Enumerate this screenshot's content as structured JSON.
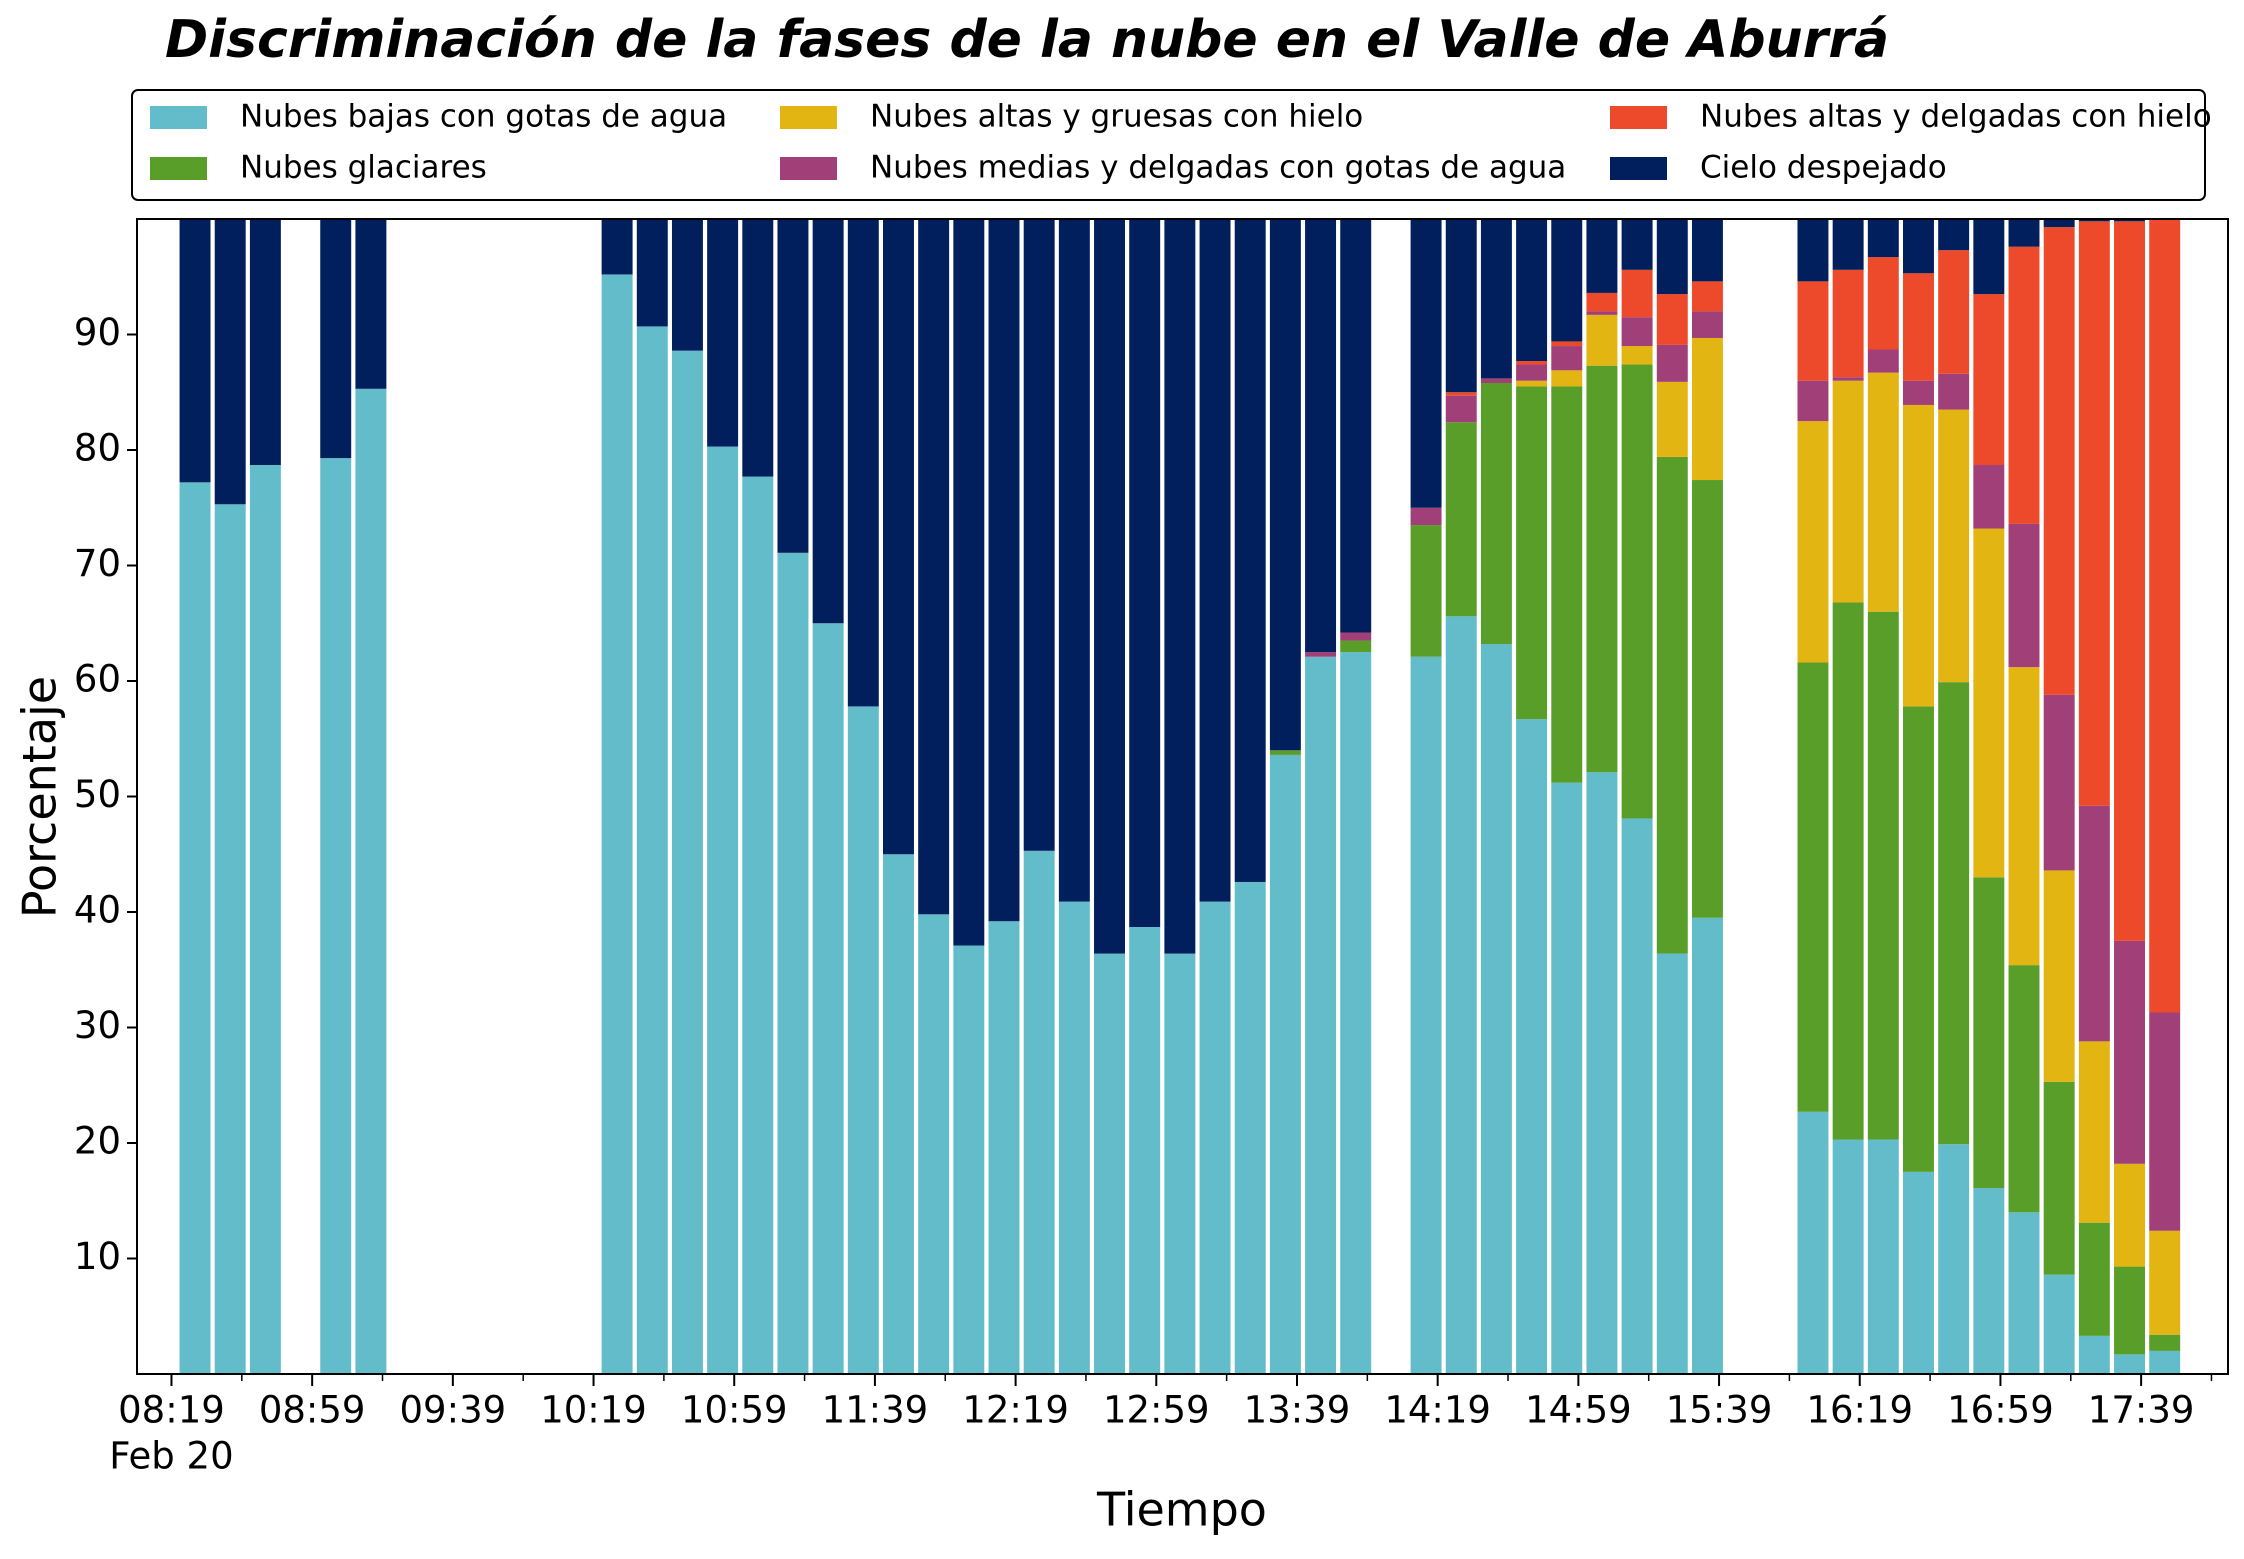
{
  "chart_data": {
    "type": "stacked_bar",
    "title": "Discriminación de la fases de la nube en el Valle de Aburrá",
    "x_label": "Tiempo",
    "y_label": "Porcentaje",
    "date_label": "Feb 20",
    "categories": [
      null,
      null,
      null,
      null,
      null,
      null,
      null,
      null,
      null,
      null,
      null,
      null,
      null,
      null,
      null,
      null,
      null,
      null,
      null,
      null,
      null,
      null,
      null,
      null,
      null,
      null,
      null,
      null,
      null,
      null,
      null,
      null,
      null,
      null,
      null,
      null,
      null,
      null,
      null,
      null,
      null,
      null,
      null,
      null,
      null,
      null,
      null,
      null,
      null,
      null,
      null,
      null,
      null,
      null,
      null,
      null,
      null
    ],
    "series": [
      {
        "name": "Nubes bajas con gotas de agua",
        "color": "#63bcc9",
        "values": [
          77.2,
          75.3,
          78.7,
          null,
          79.3,
          85.3,
          null,
          null,
          null,
          null,
          null,
          null,
          95.2,
          90.7,
          88.6,
          80.3,
          77.7,
          71.1,
          65.0,
          57.8,
          45.0,
          39.8,
          37.1,
          39.2,
          45.3,
          40.9,
          36.4,
          38.7,
          36.4,
          40.9,
          42.6,
          53.6,
          62.1,
          62.5,
          null,
          62.1,
          65.6,
          63.2,
          56.7,
          51.2,
          52.1,
          48.1,
          36.4,
          39.5,
          null,
          null,
          22.7,
          20.3,
          20.3,
          17.5,
          19.9,
          16.1,
          14.0,
          8.6,
          3.3,
          1.7,
          2.0
        ]
      },
      {
        "name": "Nubes glaciares",
        "color": "#5a9e2a",
        "values": [
          0,
          0,
          0,
          null,
          0,
          0,
          null,
          null,
          null,
          null,
          null,
          null,
          0,
          0,
          0,
          0,
          0,
          0,
          0,
          0,
          0,
          0,
          0,
          0,
          0,
          0,
          0,
          0,
          0,
          0,
          0,
          0.4,
          0,
          1.0,
          null,
          11.4,
          16.8,
          22.6,
          28.8,
          34.3,
          35.2,
          39.3,
          43.0,
          37.9,
          null,
          null,
          38.9,
          46.5,
          45.7,
          40.3,
          40.0,
          26.9,
          21.4,
          16.7,
          9.8,
          7.6,
          1.4
        ]
      },
      {
        "name": "Nubes altas y gruesas con hielo",
        "color": "#e3b512",
        "values": [
          0,
          0,
          0,
          null,
          0,
          0,
          null,
          null,
          null,
          null,
          null,
          null,
          0,
          0,
          0,
          0,
          0,
          0,
          0,
          0,
          0,
          0,
          0,
          0,
          0,
          0,
          0,
          0,
          0,
          0,
          0,
          0,
          0,
          0,
          null,
          0,
          0,
          0,
          0.5,
          1.4,
          4.4,
          1.6,
          6.5,
          12.3,
          null,
          null,
          20.9,
          19.2,
          20.7,
          26.1,
          23.6,
          30.2,
          25.8,
          18.3,
          15.7,
          8.9,
          9.0
        ]
      },
      {
        "name": "Nubes medias y delgadas con gotas de agua",
        "color": "#a03f78",
        "values": [
          0,
          0,
          0,
          null,
          0,
          0,
          null,
          null,
          null,
          null,
          null,
          null,
          0,
          0,
          0,
          0,
          0,
          0,
          0,
          0,
          0,
          0,
          0,
          0,
          0,
          0,
          0,
          0,
          0,
          0,
          0,
          0,
          0.4,
          0.7,
          null,
          1.5,
          2.3,
          0.4,
          1.4,
          2.1,
          0.3,
          2.5,
          3.2,
          2.3,
          null,
          null,
          3.5,
          0.3,
          2.0,
          2.1,
          3.1,
          5.5,
          12.4,
          15.2,
          20.4,
          19.3,
          18.9
        ]
      },
      {
        "name": "Nubes altas y delgadas con hielo",
        "color": "#ec4a2b",
        "values": [
          0,
          0,
          0,
          null,
          0,
          0,
          null,
          null,
          null,
          null,
          null,
          null,
          0,
          0,
          0,
          0,
          0,
          0,
          0,
          0,
          0,
          0,
          0,
          0,
          0,
          0,
          0,
          0,
          0,
          0,
          0,
          0,
          0,
          0,
          null,
          0,
          0.3,
          0,
          0.3,
          0.4,
          1.6,
          4.1,
          4.4,
          2.6,
          null,
          null,
          8.6,
          9.3,
          8.0,
          9.3,
          10.7,
          14.8,
          24.0,
          40.5,
          50.6,
          62.3,
          68.7
        ]
      },
      {
        "name": "Cielo despejado",
        "color": "#001f5c",
        "values": [
          22.8,
          24.7,
          21.3,
          null,
          20.7,
          14.7,
          null,
          null,
          null,
          null,
          null,
          null,
          4.8,
          9.3,
          11.4,
          19.7,
          22.3,
          28.9,
          35.0,
          42.2,
          55.0,
          60.2,
          62.9,
          60.8,
          54.7,
          59.1,
          63.6,
          61.3,
          63.6,
          59.1,
          57.4,
          46.0,
          37.5,
          35.8,
          null,
          25.0,
          15.0,
          13.8,
          12.3,
          10.6,
          6.4,
          4.4,
          6.5,
          5.4,
          null,
          null,
          5.4,
          4.4,
          3.3,
          4.7,
          2.7,
          6.5,
          2.4,
          0.7,
          0.2,
          0.2,
          0
        ]
      }
    ],
    "xlim": [
      -1.65,
      57.8
    ],
    "xticks": [
      {
        "value": -0.67,
        "label": "08:19"
      },
      {
        "value": 3.33,
        "label": "08:59"
      },
      {
        "value": 7.33,
        "label": "09:39"
      },
      {
        "value": 11.33,
        "label": "10:19"
      },
      {
        "value": 15.33,
        "label": "10:59"
      },
      {
        "value": 19.33,
        "label": "11:39"
      },
      {
        "value": 23.33,
        "label": "12:19"
      },
      {
        "value": 27.33,
        "label": "12:59"
      },
      {
        "value": 31.33,
        "label": "13:39"
      },
      {
        "value": 35.33,
        "label": "14:19"
      },
      {
        "value": 39.33,
        "label": "14:59"
      },
      {
        "value": 43.33,
        "label": "15:39"
      },
      {
        "value": 47.33,
        "label": "16:19"
      },
      {
        "value": 51.33,
        "label": "16:59"
      },
      {
        "value": 55.33,
        "label": "17:39"
      }
    ],
    "xminor_ticks": [
      1.33,
      5.33,
      9.33,
      13.33,
      17.33,
      21.33,
      25.33,
      29.33,
      33.33,
      37.33,
      41.33,
      45.33,
      49.33,
      53.33,
      57.33
    ],
    "ylim": [
      0,
      100
    ],
    "yticks": [
      10,
      20,
      30,
      40,
      50,
      60,
      70,
      80,
      90
    ],
    "grid": false,
    "legend": "top"
  }
}
